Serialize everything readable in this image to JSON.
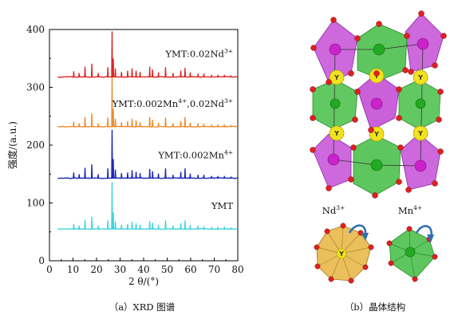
{
  "chart_data": {
    "type": "line",
    "xlabel": "2 θ/(°)",
    "ylabel": "强度/(a.u.)",
    "xlim": [
      0,
      80
    ],
    "ylim": [
      0,
      400
    ],
    "x_ticks": [
      "0",
      "10",
      "20",
      "30",
      "40",
      "50",
      "60",
      "70",
      "80"
    ],
    "y_ticks": [
      "0",
      "100",
      "200",
      "300",
      "400"
    ],
    "grid": false,
    "peaks_2theta": [
      10.3,
      12.6,
      15.1,
      18.0,
      20.7,
      24.8,
      26.6,
      27.1,
      28.0,
      30.6,
      33.2,
      35.1,
      36.8,
      38.5,
      42.6,
      43.8,
      46.3,
      49.3,
      52.5,
      55.8,
      57.6,
      59.8,
      63.1,
      65.6,
      68.9,
      71.6,
      74.3,
      77.1
    ],
    "series": [
      {
        "name": "YMT",
        "label_main": "YMT",
        "label_sup": "",
        "color": "#3fd3df",
        "baseline": 55,
        "intensities": [
          8,
          5,
          15,
          20,
          5,
          14,
          80,
          28,
          12,
          7,
          8,
          12,
          9,
          7,
          13,
          10,
          6,
          14,
          5,
          9,
          14,
          6,
          5,
          4,
          3,
          3,
          3,
          2
        ]
      },
      {
        "name": "YMT:0.002Mn4+",
        "label_main": "YMT:0.002Mn",
        "label_sup": "4+",
        "color": "#1d26b8",
        "baseline": 143,
        "intensities": [
          9,
          6,
          17,
          23,
          6,
          16,
          83,
          32,
          14,
          8,
          9,
          13,
          10,
          8,
          15,
          11,
          7,
          16,
          5,
          10,
          16,
          7,
          5,
          5,
          3,
          3,
          3,
          2
        ]
      },
      {
        "name": "YMT:0.002Mn4+,0.02Nd3+",
        "label_main": "YMT:0.002Mn",
        "label_sup": "4+",
        "label_main2": ",0.02Nd",
        "label_sup2": "3+",
        "color": "#ee8a2c",
        "baseline": 232,
        "intensities": [
          8,
          5,
          16,
          22,
          5,
          15,
          85,
          30,
          13,
          7,
          9,
          13,
          10,
          7,
          16,
          11,
          6,
          15,
          5,
          9,
          16,
          6,
          5,
          4,
          3,
          3,
          3,
          2
        ]
      },
      {
        "name": "YMT:0.02Nd3+",
        "label_main": "YMT:0.02Nd",
        "label_sup": "3+",
        "color": "#df2424",
        "baseline": 318,
        "intensities": [
          9,
          6,
          17,
          22,
          6,
          16,
          78,
          31,
          14,
          8,
          10,
          14,
          10,
          8,
          17,
          12,
          7,
          16,
          6,
          10,
          15,
          7,
          5,
          5,
          3,
          3,
          3,
          2
        ]
      }
    ]
  },
  "captions": {
    "left": "（a）XRD 图谱",
    "right": "（b）晶体结构"
  },
  "structure": {
    "atom_label": "Y",
    "legend_left_main": "Nd",
    "legend_left_sup": "3+",
    "legend_right_main": "Mn",
    "legend_right_sup": "4+",
    "colors": {
      "green_octahedron": "#4cc04c",
      "purple_octahedron": "#c44fd6",
      "yellow_atom": "#f2e21c",
      "red_atom": "#e02020",
      "nd_polyhedron": "#e8b84a",
      "arrow": "#2f6fb5"
    }
  }
}
